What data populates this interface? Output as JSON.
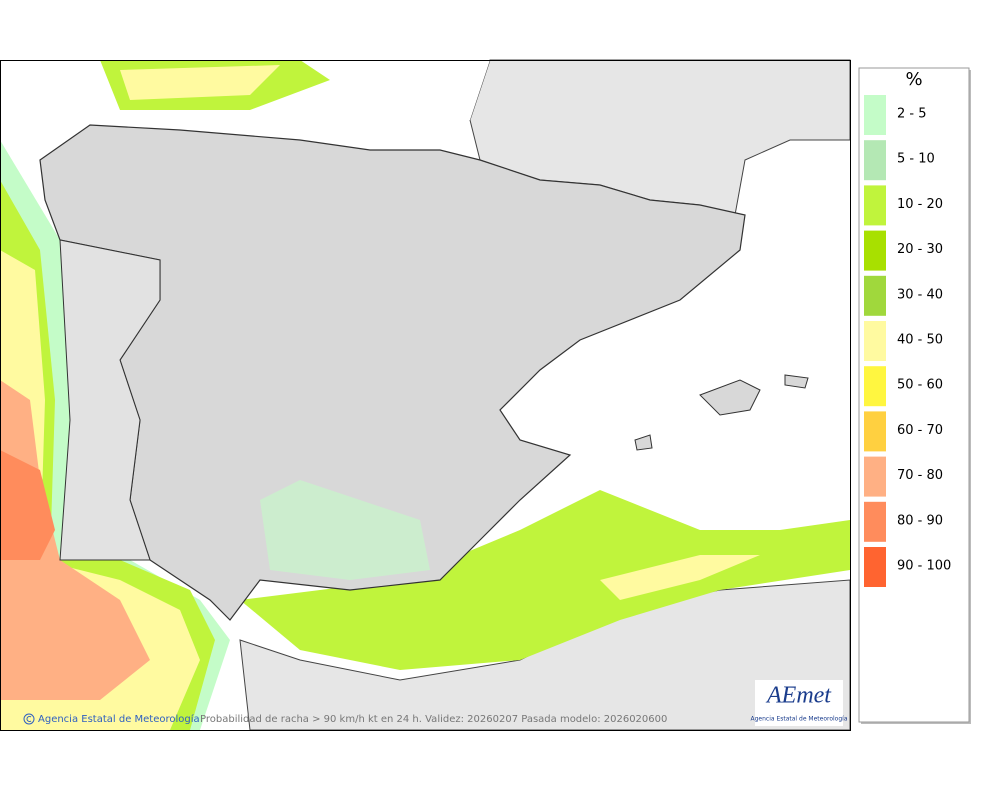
{
  "map": {
    "credit": "Agencia Estatal de Meteorología",
    "caption": "Probabilidad de racha > 90 km/h kt en 24 h. Validez: 20260207 Pasada modelo: 2026020600"
  },
  "legend": {
    "title": "%",
    "items": [
      {
        "label": "2 - 5",
        "color": "#c4fcc8"
      },
      {
        "label": "5 - 10",
        "color": "#b4e8b4"
      },
      {
        "label": "10 - 20",
        "color": "#c0f43c"
      },
      {
        "label": "20 - 30",
        "color": "#a8e000"
      },
      {
        "label": "30 - 40",
        "color": "#a0d83c"
      },
      {
        "label": "40 - 50",
        "color": "#fffaa0"
      },
      {
        "label": "50 - 60",
        "color": "#fff640"
      },
      {
        "label": "60 - 70",
        "color": "#ffd040"
      },
      {
        "label": "70 - 80",
        "color": "#ffb084"
      },
      {
        "label": "80 - 90",
        "color": "#ff8c5c"
      },
      {
        "label": "90 - 100",
        "color": "#ff6430"
      }
    ]
  },
  "logo": {
    "text": "AEmet",
    "subtitle": "Agencia Estatal de Meteorología"
  }
}
